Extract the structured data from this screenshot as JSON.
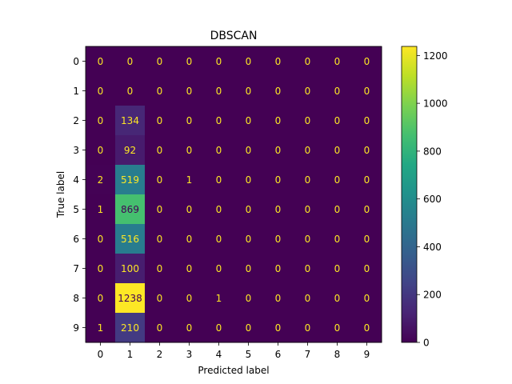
{
  "chart_data": {
    "type": "heatmap",
    "title": "DBSCAN",
    "xlabel": "Predicted label",
    "ylabel": "True label",
    "x_categories": [
      "0",
      "1",
      "2",
      "3",
      "4",
      "5",
      "6",
      "7",
      "8",
      "9"
    ],
    "y_categories": [
      "0",
      "1",
      "2",
      "3",
      "4",
      "5",
      "6",
      "7",
      "8",
      "9"
    ],
    "matrix": [
      [
        0,
        0,
        0,
        0,
        0,
        0,
        0,
        0,
        0,
        0
      ],
      [
        0,
        0,
        0,
        0,
        0,
        0,
        0,
        0,
        0,
        0
      ],
      [
        0,
        134,
        0,
        0,
        0,
        0,
        0,
        0,
        0,
        0
      ],
      [
        0,
        92,
        0,
        0,
        0,
        0,
        0,
        0,
        0,
        0
      ],
      [
        2,
        519,
        0,
        1,
        0,
        0,
        0,
        0,
        0,
        0
      ],
      [
        1,
        869,
        0,
        0,
        0,
        0,
        0,
        0,
        0,
        0
      ],
      [
        0,
        516,
        0,
        0,
        0,
        0,
        0,
        0,
        0,
        0
      ],
      [
        0,
        100,
        0,
        0,
        0,
        0,
        0,
        0,
        0,
        0
      ],
      [
        0,
        1238,
        0,
        0,
        1,
        0,
        0,
        0,
        0,
        0
      ],
      [
        1,
        210,
        0,
        0,
        0,
        0,
        0,
        0,
        0,
        0
      ]
    ],
    "colormap": "viridis",
    "vmin": 0,
    "vmax": 1238,
    "colorbar_ticks": [
      0,
      200,
      400,
      600,
      800,
      1000,
      1200
    ],
    "text_color_dark": "#440154",
    "text_color_light": "#fde725"
  }
}
